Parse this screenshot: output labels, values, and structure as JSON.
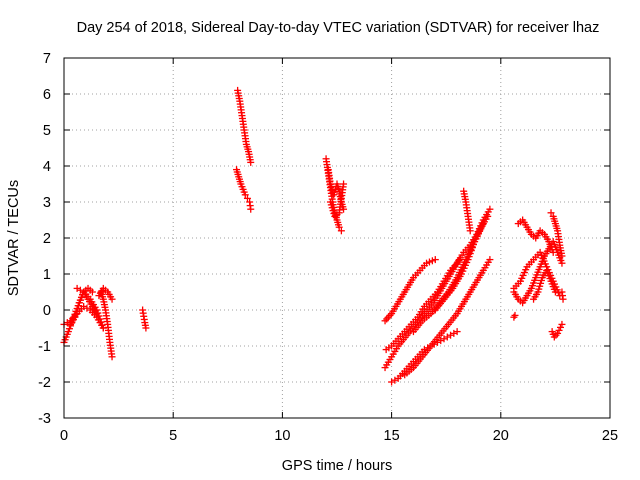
{
  "chart_data": {
    "type": "scatter",
    "title": "Day 254 of 2018, Sidereal Day-to-day VTEC variation (SDTVAR) for receiver lhaz",
    "xlabel": "GPS time / hours",
    "ylabel": "SDTVAR / TECUs",
    "xlim": [
      0,
      25
    ],
    "ylim": [
      -3,
      7
    ],
    "x_ticks": [
      0,
      5,
      10,
      15,
      20,
      25
    ],
    "y_ticks": [
      -3,
      -2,
      -1,
      0,
      1,
      2,
      3,
      4,
      5,
      6,
      7
    ],
    "x_tick_labels": [
      "0",
      "5",
      "10",
      "15",
      "20",
      "25"
    ],
    "y_tick_labels": [
      "-3",
      "-2",
      "-1",
      "0",
      "1",
      "2",
      "3",
      "4",
      "5",
      "6",
      "7"
    ],
    "grid": true,
    "marker": "+",
    "color": "#ff0000",
    "segments": [
      {
        "x": [
          0.0,
          0.2,
          0.45,
          0.7,
          0.9,
          1.1,
          1.3
        ],
        "y": [
          -0.9,
          -0.6,
          -0.2,
          0.2,
          0.5,
          0.6,
          0.5
        ]
      },
      {
        "x": [
          0.0,
          0.3,
          0.6,
          0.9,
          1.2,
          1.5,
          1.8
        ],
        "y": [
          -0.4,
          -0.3,
          -0.1,
          0.1,
          0.0,
          -0.2,
          -0.5
        ]
      },
      {
        "x": [
          0.3,
          0.5,
          0.7,
          0.9,
          1.1,
          1.3,
          1.5
        ],
        "y": [
          -0.4,
          -0.2,
          0.2,
          0.5,
          0.3,
          0.1,
          -0.1
        ]
      },
      {
        "x": [
          0.6,
          0.9,
          1.2,
          1.5,
          1.8
        ],
        "y": [
          0.6,
          0.5,
          0.3,
          0.0,
          -0.5
        ]
      },
      {
        "x": [
          1.7,
          1.8,
          1.9,
          2.0,
          2.1,
          2.2
        ],
        "y": [
          0.5,
          0.3,
          0.0,
          -0.4,
          -0.9,
          -1.3
        ]
      },
      {
        "x": [
          1.6,
          1.8,
          2.0,
          2.2
        ],
        "y": [
          0.4,
          0.6,
          0.5,
          0.3
        ]
      },
      {
        "x": [
          3.6,
          3.7,
          3.75
        ],
        "y": [
          0.0,
          -0.35,
          -0.5
        ]
      },
      {
        "x": [
          7.95,
          8.05,
          8.15,
          8.25,
          8.35,
          8.45,
          8.55
        ],
        "y": [
          6.1,
          5.8,
          5.4,
          5.0,
          4.6,
          4.4,
          4.1
        ]
      },
      {
        "x": [
          7.9,
          8.0,
          8.1,
          8.2,
          8.3,
          8.4,
          8.5,
          8.55
        ],
        "y": [
          3.9,
          3.7,
          3.5,
          3.35,
          3.2,
          3.1,
          3.0,
          2.8
        ]
      },
      {
        "x": [
          12.0,
          12.1,
          12.2,
          12.3,
          12.4,
          12.5,
          12.6,
          12.7
        ],
        "y": [
          4.2,
          3.8,
          3.4,
          3.0,
          2.7,
          2.5,
          2.3,
          2.2
        ]
      },
      {
        "x": [
          12.1,
          12.2,
          12.35,
          12.5,
          12.6,
          12.7,
          12.8
        ],
        "y": [
          3.9,
          3.5,
          3.2,
          3.5,
          3.3,
          3.0,
          2.8
        ]
      },
      {
        "x": [
          12.2,
          12.4,
          12.6,
          12.8
        ],
        "y": [
          3.0,
          2.6,
          2.7,
          3.5
        ]
      },
      {
        "x": [
          14.7,
          14.85,
          15.0,
          15.2,
          15.4,
          15.6,
          15.8,
          16.0,
          16.3,
          16.6,
          17.0
        ],
        "y": [
          -0.3,
          -0.2,
          -0.1,
          0.1,
          0.3,
          0.5,
          0.7,
          0.9,
          1.1,
          1.3,
          1.4
        ]
      },
      {
        "x": [
          14.75,
          15.0,
          15.3,
          15.6,
          15.9,
          16.2,
          16.5,
          16.8,
          17.1,
          17.4,
          17.7,
          18.0,
          18.3,
          18.6,
          18.9,
          19.2,
          19.5
        ],
        "y": [
          -1.1,
          -1.0,
          -0.8,
          -0.6,
          -0.4,
          -0.2,
          0.1,
          0.3,
          0.5,
          0.8,
          1.1,
          1.3,
          1.6,
          1.8,
          2.1,
          2.5,
          2.8
        ]
      },
      {
        "x": [
          14.7,
          15.0,
          15.3,
          15.7,
          16.1,
          16.5,
          16.9,
          17.3,
          17.7,
          18.1
        ],
        "y": [
          -1.6,
          -1.3,
          -1.0,
          -0.7,
          -0.4,
          -0.1,
          0.2,
          0.6,
          1.0,
          1.4
        ]
      },
      {
        "x": [
          15.0,
          15.3,
          15.6,
          15.9,
          16.2,
          16.5,
          16.8,
          17.1,
          17.4,
          17.7,
          18.0
        ],
        "y": [
          -2.0,
          -1.9,
          -1.7,
          -1.5,
          -1.3,
          -1.1,
          -1.0,
          -0.9,
          -0.8,
          -0.7,
          -0.6
        ]
      },
      {
        "x": [
          15.6,
          16.0,
          16.4,
          16.8,
          17.2,
          17.6,
          18.0,
          18.4,
          18.8,
          19.2,
          19.5
        ],
        "y": [
          -1.8,
          -1.6,
          -1.3,
          -1.0,
          -0.7,
          -0.4,
          -0.1,
          0.3,
          0.7,
          1.1,
          1.4
        ]
      },
      {
        "x": [
          16.0,
          16.4,
          16.8,
          17.2,
          17.6,
          18.0,
          18.4,
          18.8,
          19.2
        ],
        "y": [
          -0.6,
          -0.3,
          -0.1,
          0.2,
          0.5,
          0.9,
          1.4,
          1.9,
          2.4
        ]
      },
      {
        "x": [
          17.0,
          17.4,
          17.8,
          18.2,
          18.5,
          18.8,
          19.1,
          19.4
        ],
        "y": [
          0.0,
          0.3,
          0.6,
          1.0,
          1.4,
          1.9,
          2.3,
          2.6
        ]
      },
      {
        "x": [
          18.3,
          18.4,
          18.5,
          18.6
        ],
        "y": [
          3.3,
          3.0,
          2.6,
          2.2
        ]
      },
      {
        "x": [
          20.6,
          20.8,
          21.0,
          21.2,
          21.4,
          21.6,
          21.8,
          22.0,
          22.2,
          22.4,
          22.6,
          22.8
        ],
        "y": [
          0.5,
          0.3,
          0.2,
          0.4,
          0.6,
          0.9,
          1.2,
          1.5,
          1.7,
          1.9,
          1.6,
          1.3
        ]
      },
      {
        "x": [
          20.8,
          21.0,
          21.2,
          21.4,
          21.6,
          21.8,
          22.0,
          22.2,
          22.4
        ],
        "y": [
          2.4,
          2.5,
          2.3,
          2.1,
          2.0,
          2.2,
          2.1,
          1.9,
          1.6
        ]
      },
      {
        "x": [
          20.6,
          20.9,
          21.2,
          21.5,
          21.8,
          22.1,
          22.4,
          22.7
        ],
        "y": [
          0.6,
          0.8,
          1.2,
          1.4,
          1.6,
          1.2,
          0.8,
          0.4
        ]
      },
      {
        "x": [
          21.5,
          21.7,
          21.9,
          22.1,
          22.3,
          22.5
        ],
        "y": [
          0.3,
          0.5,
          0.9,
          1.1,
          0.8,
          0.5
        ]
      },
      {
        "x": [
          22.3,
          22.4,
          22.5,
          22.6,
          22.7,
          22.8
        ],
        "y": [
          2.7,
          2.6,
          2.4,
          2.2,
          1.8,
          1.5
        ]
      },
      {
        "x": [
          22.8,
          22.85
        ],
        "y": [
          0.5,
          0.3
        ]
      },
      {
        "x": [
          22.35,
          22.45,
          22.6,
          22.8
        ],
        "y": [
          -0.6,
          -0.75,
          -0.65,
          -0.4
        ]
      },
      {
        "x": [
          20.6,
          20.65
        ],
        "y": [
          -0.2,
          -0.15
        ]
      }
    ]
  }
}
